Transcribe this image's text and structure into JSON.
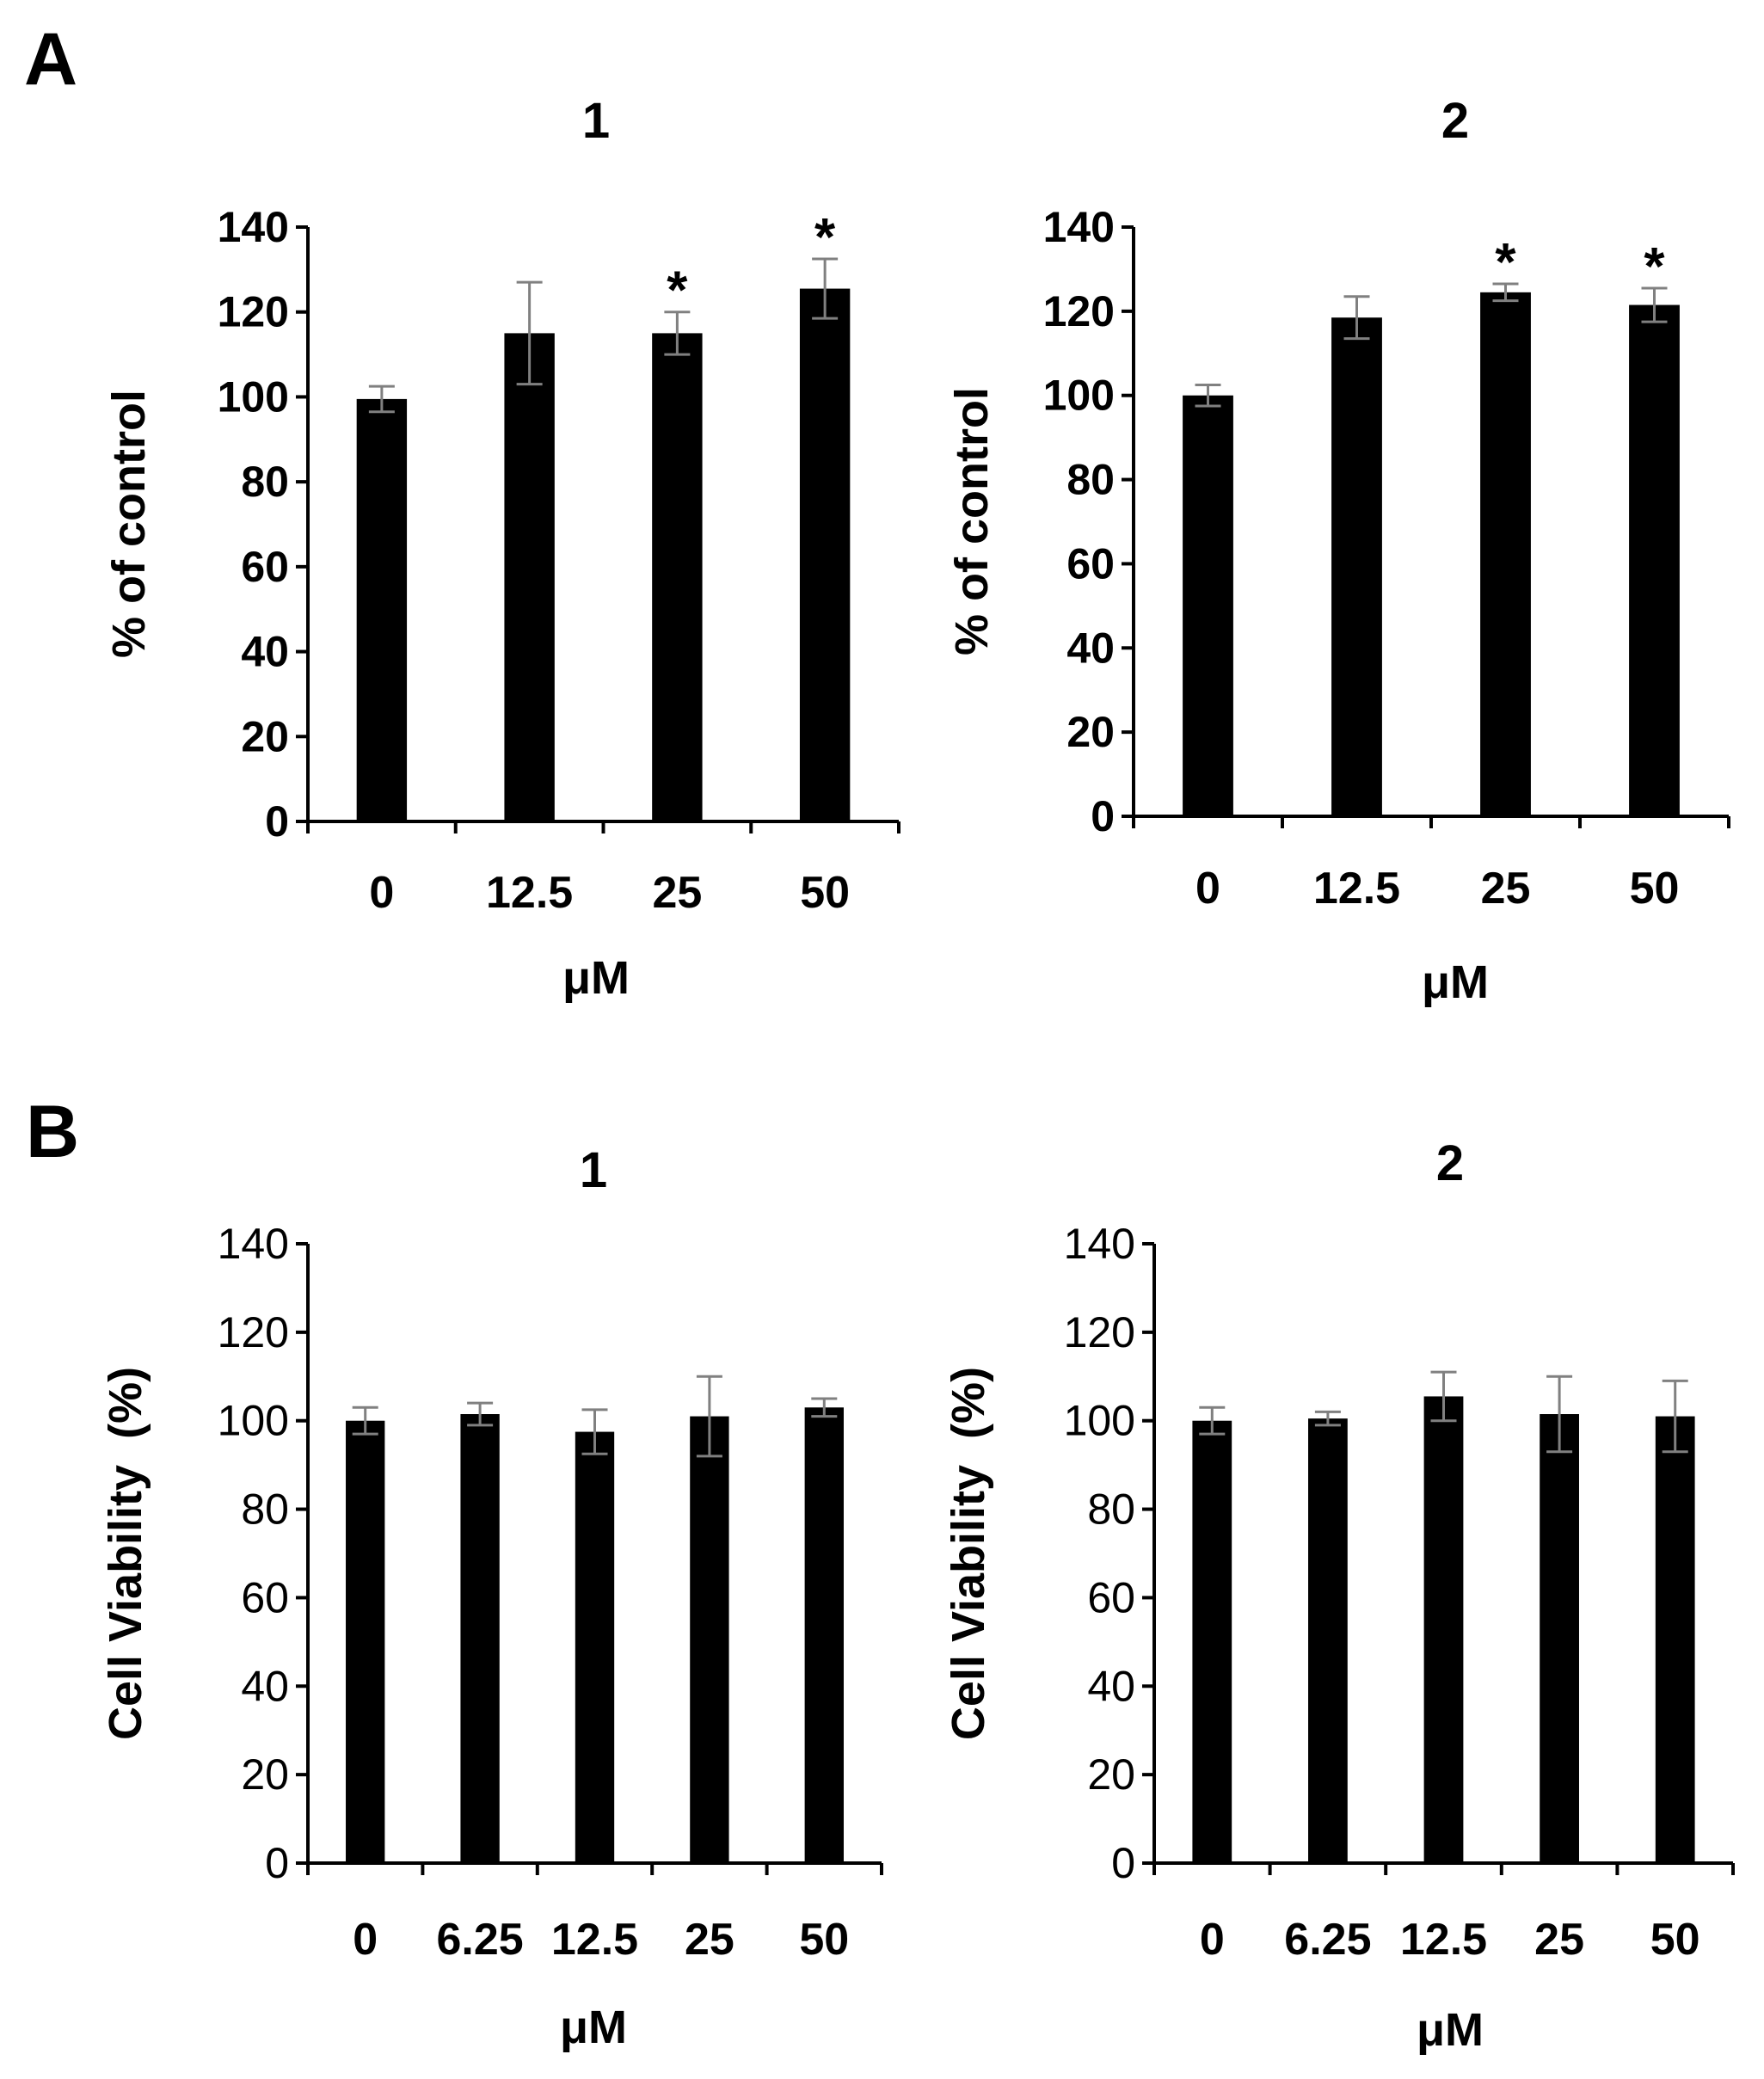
{
  "colors": {
    "bar": "#000000",
    "axis": "#000000",
    "error_bar": "#808080",
    "background": "#ffffff"
  },
  "panels": [
    {
      "label": "A"
    },
    {
      "label": "B"
    }
  ],
  "chart_data": [
    {
      "type": "bar",
      "panel": "A",
      "title": "1",
      "xlabel": "μM",
      "ylabel": "% of control",
      "categories": [
        "0",
        "12.5",
        "25",
        "50"
      ],
      "values": [
        99.5,
        115,
        115,
        125.5
      ],
      "errors": [
        3,
        12,
        5,
        7
      ],
      "significance": [
        "",
        "",
        "*",
        "*"
      ],
      "ylim": [
        0,
        140
      ],
      "yticks": [
        "0",
        "20",
        "40",
        "60",
        "80",
        "100",
        "120",
        "140"
      ],
      "ytick_weight": "bold",
      "grid": false
    },
    {
      "type": "bar",
      "panel": "A",
      "title": "2",
      "xlabel": "μM",
      "ylabel": "% of control",
      "categories": [
        "0",
        "12.5",
        "25",
        "50"
      ],
      "values": [
        100,
        118.5,
        124.5,
        121.5
      ],
      "errors": [
        2.5,
        5,
        2,
        4
      ],
      "significance": [
        "",
        "",
        "*",
        "*"
      ],
      "ylim": [
        0,
        140
      ],
      "yticks": [
        "0",
        "20",
        "40",
        "60",
        "80",
        "100",
        "120",
        "140"
      ],
      "ytick_weight": "bold",
      "grid": false
    },
    {
      "type": "bar",
      "panel": "B",
      "title": "1",
      "xlabel": "μM",
      "ylabel": "Cell Viability  (%)",
      "categories": [
        "0",
        "6.25",
        "12.5",
        "25",
        "50"
      ],
      "values": [
        100,
        101.5,
        97.5,
        101,
        103
      ],
      "errors": [
        3,
        2.5,
        5,
        9,
        2
      ],
      "significance": [
        "",
        "",
        "",
        "",
        ""
      ],
      "ylim": [
        0,
        140
      ],
      "yticks": [
        "0",
        "20",
        "40",
        "60",
        "80",
        "100",
        "120",
        "140"
      ],
      "ytick_weight": "normal",
      "grid": false
    },
    {
      "type": "bar",
      "panel": "B",
      "title": "2",
      "xlabel": "μM",
      "ylabel": "Cell Viability  (%)",
      "categories": [
        "0",
        "6.25",
        "12.5",
        "25",
        "50"
      ],
      "values": [
        100,
        100.5,
        105.5,
        101.5,
        101
      ],
      "errors": [
        3,
        1.5,
        5.5,
        8.5,
        8
      ],
      "significance": [
        "",
        "",
        "",
        "",
        ""
      ],
      "ylim": [
        0,
        140
      ],
      "yticks": [
        "0",
        "20",
        "40",
        "60",
        "80",
        "100",
        "120",
        "140"
      ],
      "ytick_weight": "normal",
      "grid": false
    }
  ]
}
